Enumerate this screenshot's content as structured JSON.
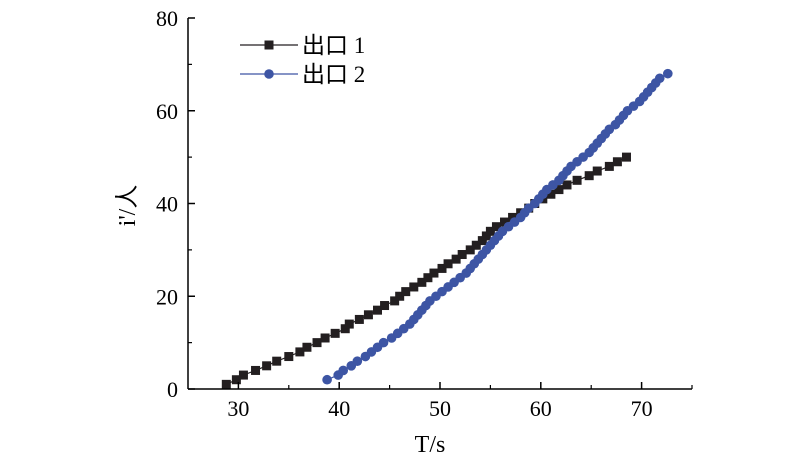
{
  "chart_data": {
    "type": "scatter",
    "title": "",
    "xlabel": "T/s",
    "ylabel": "i'/人",
    "xlim": [
      25,
      75
    ],
    "ylim": [
      0,
      80
    ],
    "xticks": [
      "30",
      "40",
      "50",
      "60",
      "70"
    ],
    "yticks": [
      "0",
      "20",
      "40",
      "60",
      "80"
    ],
    "grid": false,
    "legend_position": "top-left",
    "series": [
      {
        "name": "出口 1",
        "color": "#231f20",
        "marker": "square",
        "points": [
          [
            28.8,
            1
          ],
          [
            29.8,
            2
          ],
          [
            30.5,
            3
          ],
          [
            31.7,
            4
          ],
          [
            32.8,
            5
          ],
          [
            33.8,
            6
          ],
          [
            35.0,
            7
          ],
          [
            36.1,
            8
          ],
          [
            36.8,
            9
          ],
          [
            37.8,
            10
          ],
          [
            38.6,
            11
          ],
          [
            39.6,
            12
          ],
          [
            40.6,
            13
          ],
          [
            41.0,
            14
          ],
          [
            42.0,
            15
          ],
          [
            42.9,
            16
          ],
          [
            43.8,
            17
          ],
          [
            44.5,
            18
          ],
          [
            45.5,
            19
          ],
          [
            46.0,
            20
          ],
          [
            46.6,
            21
          ],
          [
            47.4,
            22
          ],
          [
            48.2,
            23
          ],
          [
            48.8,
            24
          ],
          [
            49.4,
            25
          ],
          [
            50.2,
            26
          ],
          [
            50.8,
            27
          ],
          [
            51.6,
            28
          ],
          [
            52.2,
            29
          ],
          [
            53.0,
            30
          ],
          [
            53.6,
            31
          ],
          [
            54.2,
            32
          ],
          [
            54.6,
            33
          ],
          [
            55.0,
            34
          ],
          [
            55.6,
            35
          ],
          [
            56.4,
            36
          ],
          [
            57.2,
            37
          ],
          [
            58.0,
            38
          ],
          [
            58.8,
            39
          ],
          [
            59.4,
            40
          ],
          [
            60.2,
            41
          ],
          [
            61.0,
            42
          ],
          [
            61.8,
            43
          ],
          [
            62.6,
            44
          ],
          [
            63.6,
            45
          ],
          [
            64.8,
            46
          ],
          [
            65.6,
            47
          ],
          [
            66.8,
            48
          ],
          [
            67.6,
            49
          ],
          [
            68.5,
            50
          ]
        ]
      },
      {
        "name": "出口 2",
        "color": "#3d55a4",
        "marker": "circle",
        "points": [
          [
            38.8,
            2
          ],
          [
            39.9,
            3
          ],
          [
            40.4,
            4
          ],
          [
            41.2,
            5
          ],
          [
            41.8,
            6
          ],
          [
            42.6,
            7
          ],
          [
            43.2,
            8
          ],
          [
            43.8,
            9
          ],
          [
            44.4,
            10
          ],
          [
            45.2,
            11
          ],
          [
            45.8,
            12
          ],
          [
            46.4,
            13
          ],
          [
            47.0,
            14
          ],
          [
            47.4,
            15
          ],
          [
            47.8,
            16
          ],
          [
            48.2,
            17
          ],
          [
            48.6,
            18
          ],
          [
            49.0,
            19
          ],
          [
            49.6,
            20
          ],
          [
            50.2,
            21
          ],
          [
            50.8,
            22
          ],
          [
            51.4,
            23
          ],
          [
            52.0,
            24
          ],
          [
            52.6,
            25
          ],
          [
            53.0,
            26
          ],
          [
            53.4,
            27
          ],
          [
            53.8,
            28
          ],
          [
            54.2,
            29
          ],
          [
            54.6,
            30
          ],
          [
            55.0,
            31
          ],
          [
            55.4,
            32
          ],
          [
            55.8,
            33
          ],
          [
            56.2,
            34
          ],
          [
            56.8,
            35
          ],
          [
            57.4,
            36
          ],
          [
            58.0,
            37
          ],
          [
            58.4,
            38
          ],
          [
            58.8,
            39
          ],
          [
            59.4,
            40
          ],
          [
            59.8,
            41
          ],
          [
            60.2,
            42
          ],
          [
            60.6,
            43
          ],
          [
            61.2,
            44
          ],
          [
            61.8,
            45
          ],
          [
            62.2,
            46
          ],
          [
            62.6,
            47
          ],
          [
            63.0,
            48
          ],
          [
            63.6,
            49
          ],
          [
            64.2,
            50
          ],
          [
            64.8,
            51
          ],
          [
            65.2,
            52
          ],
          [
            65.6,
            53
          ],
          [
            66.0,
            54
          ],
          [
            66.4,
            55
          ],
          [
            66.8,
            56
          ],
          [
            67.4,
            57
          ],
          [
            67.8,
            58
          ],
          [
            68.2,
            59
          ],
          [
            68.6,
            60
          ],
          [
            69.2,
            61
          ],
          [
            69.8,
            62
          ],
          [
            70.2,
            63
          ],
          [
            70.6,
            64
          ],
          [
            71.0,
            65
          ],
          [
            71.4,
            66
          ],
          [
            71.8,
            67
          ],
          [
            72.6,
            68
          ]
        ]
      }
    ]
  }
}
